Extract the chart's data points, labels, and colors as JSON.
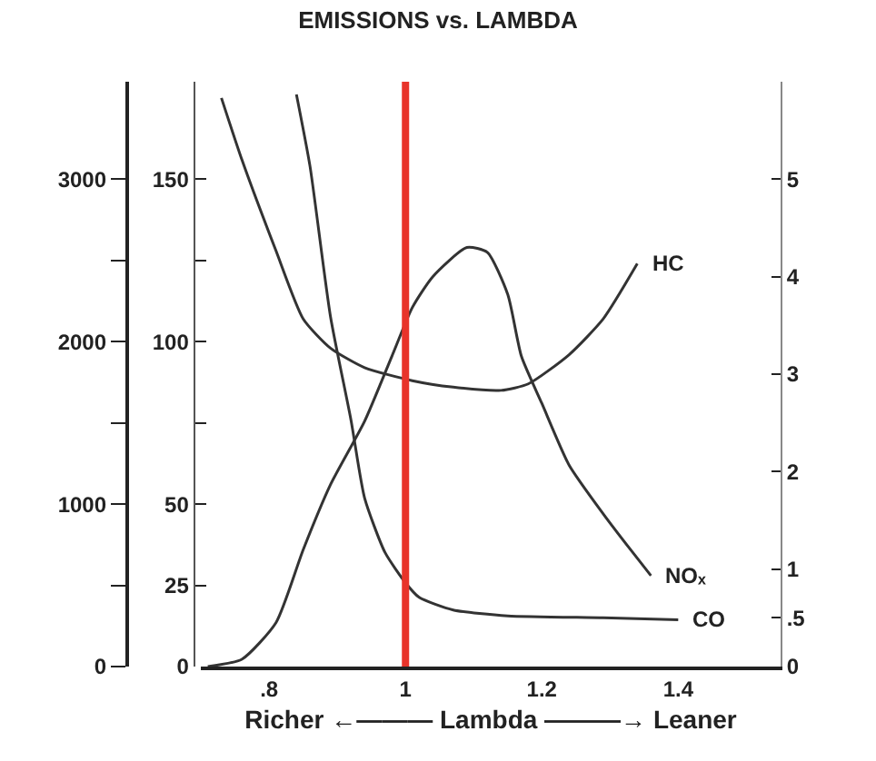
{
  "chart_data": {
    "type": "line",
    "title": "EMISSIONS vs. LAMBDA",
    "xlabel": "Richer ←——— Lambda ———→ Leaner",
    "xlim": [
      0.7,
      1.55
    ],
    "xticks": [
      {
        "value": 0.8,
        "label": ".8"
      },
      1,
      1.2,
      1.4
    ],
    "ylim": [
      0,
      3600
    ],
    "yticks": [
      0,
      {
        "value": 500,
        "label": null
      },
      1000,
      {
        "value": 1500,
        "label": null
      },
      2000,
      {
        "value": 2500,
        "label": null
      },
      3000
    ],
    "y2lim": [
      0,
      180
    ],
    "y2ticks": [
      0,
      25,
      50,
      {
        "value": 75,
        "label": null
      },
      100,
      {
        "value": 125,
        "label": null
      },
      150
    ],
    "y3lim": [
      0,
      6
    ],
    "y3ticks": [
      0,
      {
        "value": 0.5,
        "label": ".5"
      },
      1,
      2,
      3,
      4,
      5
    ],
    "series": [
      {
        "name": "HC",
        "color": "#333333",
        "axis": "y2",
        "x": [
          0.73,
          0.76,
          0.81,
          0.85,
          0.89,
          0.94,
          1.01,
          1.07,
          1.14,
          1.18,
          1.24,
          1.29,
          1.34
        ],
        "values": [
          175,
          156,
          128,
          107,
          98,
          92,
          88,
          86,
          85,
          87,
          96,
          107,
          124
        ]
      },
      {
        "name": "NOₓ",
        "color": "#333333",
        "x": [
          0.71,
          0.76,
          0.81,
          0.85,
          0.89,
          0.94,
          0.98,
          1.01,
          1.04,
          1.09,
          1.12,
          1.15,
          1.17,
          1.2,
          1.24,
          1.29,
          1.33,
          1.36
        ],
        "values": [
          0,
          45,
          270,
          720,
          1120,
          1510,
          1910,
          2210,
          2400,
          2580,
          2550,
          2290,
          1910,
          1620,
          1240,
          940,
          720,
          560
        ]
      },
      {
        "name": "CO",
        "color": "#333333",
        "axis": "y3",
        "x": [
          0.84,
          0.86,
          0.89,
          0.92,
          0.94,
          0.97,
          1.0,
          1.02,
          1.07,
          1.15,
          1.29,
          1.4
        ],
        "values": [
          5.87,
          5.13,
          3.59,
          2.53,
          1.73,
          1.17,
          0.86,
          0.71,
          0.58,
          0.52,
          0.5,
          0.48
        ]
      }
    ],
    "ref_lines": [
      {
        "axis": "x",
        "value": 1,
        "color": "#e8332a"
      }
    ],
    "legend": false,
    "grid": false,
    "line_style": "solid",
    "marker": "none"
  }
}
